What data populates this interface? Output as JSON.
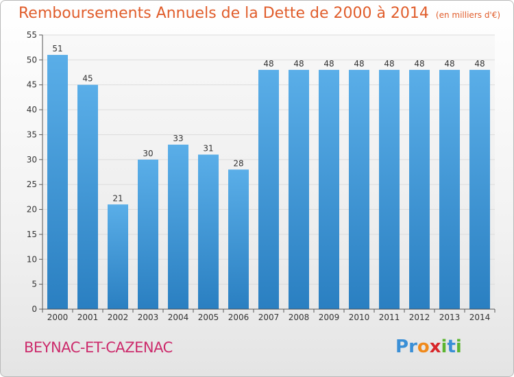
{
  "header": {
    "title": "Remboursements Annuels de la Dette de 2000 à 2014",
    "subtitle": "(en milliers d'€)"
  },
  "footer": {
    "commune": "BEYNAC-ET-CAZENAC",
    "logo_text": "Proxiti",
    "logo_letters": [
      {
        "ch": "P",
        "color": "#3a8fd6"
      },
      {
        "ch": "r",
        "color": "#3a8fd6"
      },
      {
        "ch": "o",
        "color": "#f08a1c"
      },
      {
        "ch": "x",
        "color": "#d8262a"
      },
      {
        "ch": "i",
        "color": "#5cb531"
      },
      {
        "ch": "t",
        "color": "#3a8fd6"
      },
      {
        "ch": "i",
        "color": "#5cb531"
      }
    ]
  },
  "colors": {
    "bar_light": "#5aaee8",
    "bar_dark": "#2a7fc1",
    "grid": "#dcdcdc",
    "axis": "#555555",
    "label": "#333333"
  },
  "chart_data": {
    "type": "bar",
    "title": "Remboursements Annuels de la Dette de 2000 à 2014",
    "subtitle": "(en milliers d'€)",
    "categories": [
      "2000",
      "2001",
      "2002",
      "2003",
      "2004",
      "2005",
      "2006",
      "2007",
      "2008",
      "2009",
      "2010",
      "2011",
      "2012",
      "2013",
      "2014"
    ],
    "values": [
      51,
      45,
      21,
      30,
      33,
      31,
      28,
      48,
      48,
      48,
      48,
      48,
      48,
      48,
      48
    ],
    "data_labels": [
      "51",
      "45",
      "21",
      "30",
      "33",
      "31",
      "28",
      "48",
      "48",
      "48",
      "48",
      "48",
      "48",
      "48",
      "48"
    ],
    "ylim": [
      0,
      55
    ],
    "yticks": [
      0,
      5,
      10,
      15,
      20,
      25,
      30,
      35,
      40,
      45,
      50,
      55
    ],
    "grid": true,
    "xlabel": "",
    "ylabel": ""
  }
}
